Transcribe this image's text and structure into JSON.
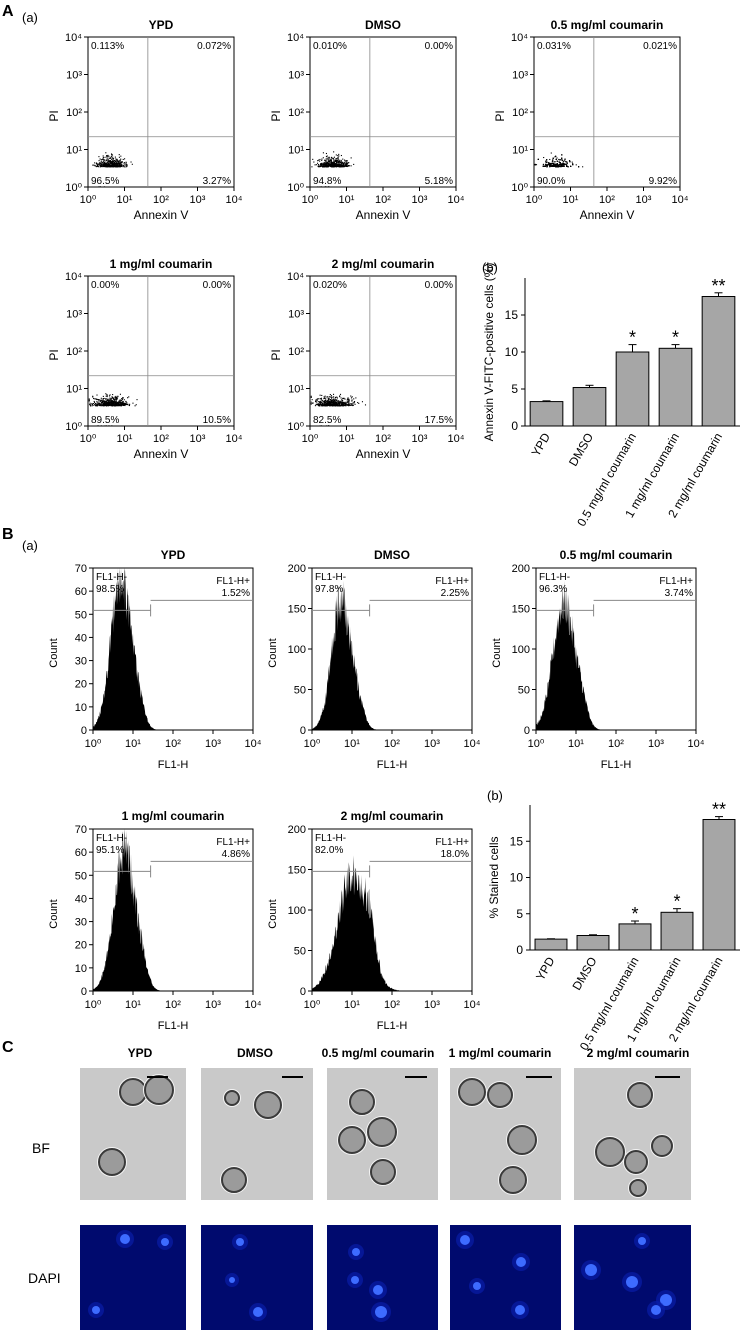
{
  "panel_letters": {
    "A": "A",
    "B": "B",
    "C": "C"
  },
  "sublabels": {
    "a": "(a)",
    "b": "(b)"
  },
  "chart_data": [
    {
      "id": "A-a",
      "type": "scatter",
      "description": "Flow cytometry quadrant dot plots, Annexin V vs PI",
      "xlabel": "Annexin V",
      "ylabel": "PI",
      "xscale": "log",
      "yscale": "log",
      "xlim": [
        1,
        10000
      ],
      "ylim": [
        1,
        10000
      ],
      "xticks": [
        "10⁰",
        "10¹",
        "10²",
        "10³",
        "10⁴"
      ],
      "yticks": [
        "10⁰",
        "10¹",
        "10²",
        "10³",
        "10⁴"
      ],
      "plots": [
        {
          "title": "YPD",
          "quadrants": {
            "ul": "0.113%",
            "ur": "0.072%",
            "ll": "96.5%",
            "lr": "3.27%"
          }
        },
        {
          "title": "DMSO",
          "quadrants": {
            "ul": "0.010%",
            "ur": "0.00%",
            "ll": "94.8%",
            "lr": "5.18%"
          }
        },
        {
          "title": "0.5 mg/ml coumarin",
          "quadrants": {
            "ul": "0.031%",
            "ur": "0.021%",
            "ll": "90.0%",
            "lr": "9.92%"
          }
        },
        {
          "title": "1 mg/ml coumarin",
          "quadrants": {
            "ul": "0.00%",
            "ur": "0.00%",
            "ll": "89.5%",
            "lr": "10.5%"
          }
        },
        {
          "title": "2 mg/ml coumarin",
          "quadrants": {
            "ul": "0.020%",
            "ur": "0.00%",
            "ll": "82.5%",
            "lr": "17.5%"
          }
        }
      ]
    },
    {
      "id": "A-b",
      "type": "bar",
      "categories": [
        "YPD",
        "DMSO",
        "0.5 mg/ml coumarin",
        "1 mg/ml coumarin",
        "2 mg/ml coumarin"
      ],
      "values": [
        3.3,
        5.2,
        10.0,
        10.5,
        17.5
      ],
      "errors": [
        0.1,
        0.3,
        1.0,
        0.5,
        0.5
      ],
      "significance": [
        "",
        "",
        "*",
        "*",
        "**"
      ],
      "ylabel": "Annexin V-FITC-positive cells (%)",
      "ylim": [
        0,
        20
      ],
      "yticks": [
        0,
        5,
        10,
        15
      ]
    },
    {
      "id": "B-a",
      "type": "area",
      "description": "Flow cytometry histograms, FL1-H (log) vs Count",
      "xlabel": "FL1-H",
      "ylabel": "Count",
      "xscale": "log",
      "xlim": [
        1,
        10000
      ],
      "xticks": [
        "10⁰",
        "10¹",
        "10²",
        "10³",
        "10⁴"
      ],
      "neg_label": "FL1-H-",
      "pos_label": "FL1-H+",
      "plots": [
        {
          "title": "YPD",
          "ymax": 70,
          "yticks": [
            0,
            10,
            20,
            30,
            40,
            50,
            60,
            70
          ],
          "neg_pct": "98.5%",
          "pos_pct": "1.52%",
          "peak_x": 5,
          "peak_count": 68,
          "spread": 0.25
        },
        {
          "title": "DMSO",
          "ymax": 200,
          "yticks": [
            0,
            50,
            100,
            150,
            200
          ],
          "neg_pct": "97.8%",
          "pos_pct": "2.25%",
          "peak_x": 5.5,
          "peak_count": 170,
          "spread": 0.24
        },
        {
          "title": "0.5 mg/ml coumarin",
          "ymax": 200,
          "yticks": [
            0,
            50,
            100,
            150,
            200
          ],
          "neg_pct": "96.3%",
          "pos_pct": "3.74%",
          "peak_x": 5,
          "peak_count": 165,
          "spread": 0.27
        },
        {
          "title": "1 mg/ml coumarin",
          "ymax": 70,
          "yticks": [
            0,
            10,
            20,
            30,
            40,
            50,
            60,
            70
          ],
          "neg_pct": "95.1%",
          "pos_pct": "4.86%",
          "peak_x": 6,
          "peak_count": 65,
          "spread": 0.26
        },
        {
          "title": "2 mg/ml coumarin",
          "ymax": 200,
          "yticks": [
            0,
            50,
            100,
            150,
            200
          ],
          "neg_pct": "82.0%",
          "pos_pct": "18.0%",
          "peak_x": 10,
          "peak_count": 150,
          "spread": 0.36
        }
      ]
    },
    {
      "id": "B-b",
      "type": "bar",
      "categories": [
        "YPD",
        "DMSO",
        "0.5 mg/ml coumarin",
        "1 mg/ml coumarin",
        "2 mg/ml coumarin"
      ],
      "values": [
        1.5,
        2.0,
        3.6,
        5.2,
        18.0
      ],
      "errors": [
        0.05,
        0.1,
        0.4,
        0.5,
        0.4
      ],
      "significance": [
        "",
        "",
        "*",
        "*",
        "**"
      ],
      "ylabel": "% Stained cells",
      "ylim": [
        0,
        20
      ],
      "yticks": [
        0,
        5,
        10,
        15
      ]
    }
  ],
  "microscopy": {
    "columns": [
      "YPD",
      "DMSO",
      "0.5 mg/ml coumarin",
      "1 mg/ml coumarin",
      "2 mg/ml coumarin"
    ],
    "rows": [
      "BF",
      "DAPI"
    ],
    "colors": {
      "bf_bg": "#c9c9c9",
      "dapi_bg": "#000a6e",
      "nucleus": "#3d6bff"
    }
  }
}
